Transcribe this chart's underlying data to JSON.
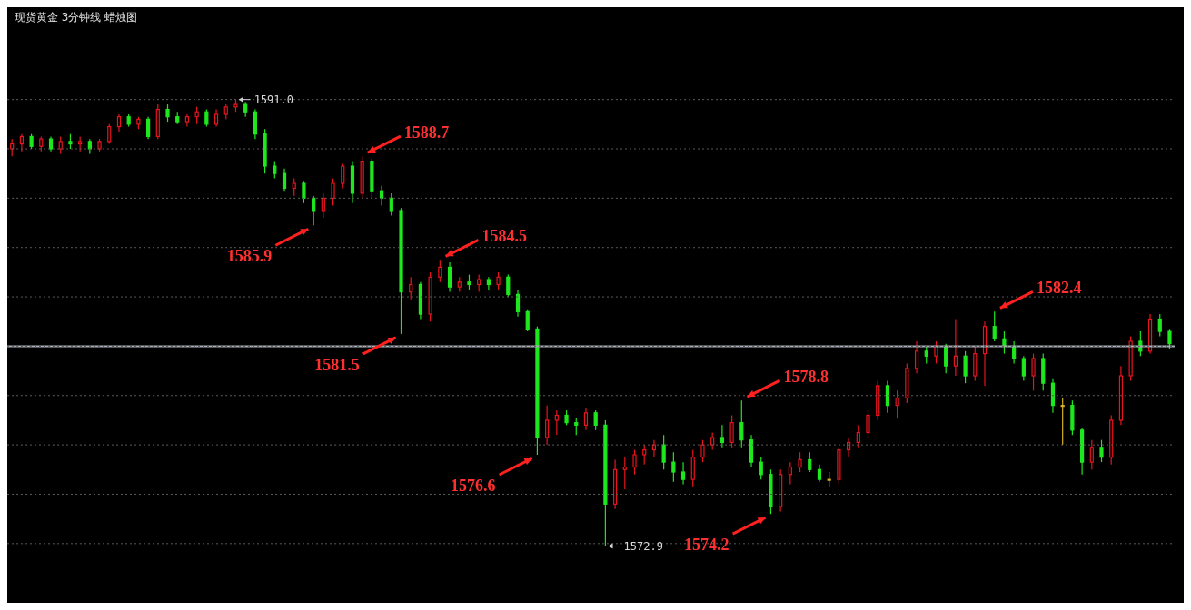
{
  "chart_data": {
    "type": "candlestick",
    "title": "现货黄金 3分钟线 蜡烛图",
    "categories": [
      null,
      null,
      null,
      null,
      null,
      null,
      null,
      null,
      null,
      null,
      null,
      null,
      null,
      null,
      null,
      null,
      null,
      null,
      null,
      null,
      null,
      null,
      null,
      null,
      null,
      null,
      null,
      null,
      null,
      null,
      null,
      null,
      null,
      null,
      null,
      null,
      null,
      null,
      null,
      null,
      null,
      null,
      null,
      null,
      null,
      null,
      null,
      null,
      null,
      null,
      null,
      null,
      null,
      null,
      null,
      null,
      null,
      null,
      null,
      null,
      null,
      null,
      null,
      null,
      null,
      null,
      null,
      null,
      null,
      null,
      null,
      null,
      null,
      null,
      null,
      null,
      null,
      null,
      null,
      null,
      null,
      null,
      null,
      null,
      null,
      null,
      null,
      null,
      null,
      null,
      null,
      null,
      null,
      null,
      null,
      null,
      null,
      null,
      null,
      null,
      null,
      null,
      null,
      null,
      null,
      null,
      null,
      null,
      null,
      null,
      null,
      null,
      null,
      null,
      null,
      null,
      null,
      null,
      null,
      null
    ],
    "ohlc": [
      [
        1589.0,
        1589.4,
        1588.7,
        1589.2
      ],
      [
        1589.2,
        1589.6,
        1588.9,
        1589.5
      ],
      [
        1589.5,
        1589.6,
        1589.0,
        1589.1
      ],
      [
        1589.1,
        1589.5,
        1588.9,
        1589.4
      ],
      [
        1589.4,
        1589.5,
        1588.9,
        1589.0
      ],
      [
        1589.0,
        1589.5,
        1588.8,
        1589.3
      ],
      [
        1589.3,
        1589.6,
        1589.0,
        1589.2
      ],
      [
        1589.2,
        1589.5,
        1588.9,
        1589.3
      ],
      [
        1589.3,
        1589.4,
        1588.8,
        1589.0
      ],
      [
        1589.0,
        1589.4,
        1588.9,
        1589.3
      ],
      [
        1589.3,
        1590.0,
        1589.2,
        1589.9
      ],
      [
        1589.9,
        1590.4,
        1589.7,
        1590.3
      ],
      [
        1590.3,
        1590.4,
        1589.9,
        1590.0
      ],
      [
        1590.0,
        1590.3,
        1589.8,
        1590.2
      ],
      [
        1590.2,
        1590.3,
        1589.4,
        1589.5
      ],
      [
        1589.5,
        1590.8,
        1589.4,
        1590.6
      ],
      [
        1590.6,
        1590.8,
        1590.1,
        1590.3
      ],
      [
        1590.3,
        1590.5,
        1590.0,
        1590.1
      ],
      [
        1590.1,
        1590.4,
        1589.9,
        1590.3
      ],
      [
        1590.3,
        1590.7,
        1590.0,
        1590.5
      ],
      [
        1590.5,
        1590.6,
        1589.9,
        1590.0
      ],
      [
        1590.0,
        1590.6,
        1589.9,
        1590.4
      ],
      [
        1590.4,
        1590.8,
        1590.2,
        1590.7
      ],
      [
        1590.7,
        1591.0,
        1590.5,
        1590.8
      ],
      [
        1590.8,
        1590.9,
        1590.3,
        1590.5
      ],
      [
        1590.5,
        1590.6,
        1589.4,
        1589.6
      ],
      [
        1589.6,
        1589.8,
        1588.0,
        1588.3
      ],
      [
        1588.3,
        1588.5,
        1587.8,
        1588.0
      ],
      [
        1588.0,
        1588.2,
        1587.3,
        1587.4
      ],
      [
        1587.4,
        1587.8,
        1587.1,
        1587.6
      ],
      [
        1587.6,
        1587.7,
        1586.8,
        1587.0
      ],
      [
        1587.0,
        1587.1,
        1585.9,
        1586.5
      ],
      [
        1586.5,
        1587.2,
        1586.2,
        1587.0
      ],
      [
        1587.0,
        1587.8,
        1586.7,
        1587.6
      ],
      [
        1587.6,
        1588.4,
        1587.4,
        1588.3
      ],
      [
        1588.3,
        1588.5,
        1586.8,
        1587.2
      ],
      [
        1587.2,
        1588.7,
        1587.0,
        1588.5
      ],
      [
        1588.5,
        1588.6,
        1587.0,
        1587.3
      ],
      [
        1587.3,
        1587.5,
        1586.7,
        1587.0
      ],
      [
        1587.0,
        1587.2,
        1586.3,
        1586.5
      ],
      [
        1586.5,
        1586.6,
        1581.5,
        1583.2
      ],
      [
        1583.2,
        1583.8,
        1582.9,
        1583.5
      ],
      [
        1583.5,
        1583.6,
        1582.1,
        1582.3
      ],
      [
        1582.3,
        1584.0,
        1582.0,
        1583.8
      ],
      [
        1583.8,
        1584.5,
        1583.6,
        1584.2
      ],
      [
        1584.2,
        1584.4,
        1583.2,
        1583.4
      ],
      [
        1583.4,
        1583.8,
        1583.2,
        1583.6
      ],
      [
        1583.6,
        1583.9,
        1583.3,
        1583.5
      ],
      [
        1583.5,
        1583.9,
        1583.2,
        1583.7
      ],
      [
        1583.7,
        1583.8,
        1583.3,
        1583.5
      ],
      [
        1583.5,
        1584.0,
        1583.3,
        1583.8
      ],
      [
        1583.8,
        1583.9,
        1583.0,
        1583.1
      ],
      [
        1583.1,
        1583.3,
        1582.2,
        1582.4
      ],
      [
        1582.4,
        1582.5,
        1581.6,
        1581.7
      ],
      [
        1581.7,
        1581.8,
        1576.6,
        1577.3
      ],
      [
        1577.3,
        1578.6,
        1577.0,
        1578.0
      ],
      [
        1578.0,
        1578.4,
        1577.4,
        1578.2
      ],
      [
        1578.2,
        1578.4,
        1577.8,
        1577.9
      ],
      [
        1577.9,
        1578.1,
        1577.4,
        1577.8
      ],
      [
        1577.8,
        1578.5,
        1577.6,
        1578.3
      ],
      [
        1578.3,
        1578.4,
        1577.6,
        1577.8
      ],
      [
        1577.8,
        1578.0,
        1572.9,
        1574.6
      ],
      [
        1574.6,
        1576.4,
        1574.4,
        1576.0
      ],
      [
        1576.0,
        1576.5,
        1575.2,
        1576.1
      ],
      [
        1576.1,
        1576.8,
        1575.8,
        1576.6
      ],
      [
        1576.6,
        1577.0,
        1576.2,
        1576.8
      ],
      [
        1576.8,
        1577.2,
        1576.5,
        1577.0
      ],
      [
        1577.0,
        1577.4,
        1576.0,
        1576.3
      ],
      [
        1576.3,
        1576.7,
        1575.5,
        1575.9
      ],
      [
        1575.9,
        1576.3,
        1575.4,
        1575.6
      ],
      [
        1575.6,
        1576.8,
        1575.3,
        1576.5
      ],
      [
        1576.5,
        1577.2,
        1576.3,
        1577.0
      ],
      [
        1577.0,
        1577.5,
        1576.8,
        1577.3
      ],
      [
        1577.3,
        1577.8,
        1576.9,
        1577.1
      ],
      [
        1577.1,
        1578.2,
        1576.9,
        1577.9
      ],
      [
        1577.9,
        1578.8,
        1576.9,
        1577.2
      ],
      [
        1577.2,
        1577.4,
        1576.1,
        1576.3
      ],
      [
        1576.3,
        1576.5,
        1575.6,
        1575.8
      ],
      [
        1575.8,
        1576.0,
        1574.2,
        1574.5
      ],
      [
        1574.5,
        1576.0,
        1574.3,
        1575.8
      ],
      [
        1575.8,
        1576.3,
        1575.4,
        1576.1
      ],
      [
        1576.1,
        1576.7,
        1575.9,
        1576.4
      ],
      [
        1576.4,
        1576.7,
        1575.9,
        1576.0
      ],
      [
        1576.0,
        1576.2,
        1575.5,
        1575.6
      ],
      [
        1575.6,
        1575.9,
        1575.3,
        1575.6
      ],
      [
        1575.6,
        1576.9,
        1575.4,
        1576.8
      ],
      [
        1576.8,
        1577.3,
        1576.5,
        1577.1
      ],
      [
        1577.1,
        1577.8,
        1576.9,
        1577.5
      ],
      [
        1577.5,
        1578.4,
        1577.3,
        1578.2
      ],
      [
        1578.2,
        1579.6,
        1578.0,
        1579.4
      ],
      [
        1579.4,
        1579.6,
        1578.3,
        1578.6
      ],
      [
        1578.6,
        1579.2,
        1578.1,
        1578.9
      ],
      [
        1578.9,
        1580.3,
        1578.7,
        1580.1
      ],
      [
        1580.1,
        1581.2,
        1579.9,
        1580.8
      ],
      [
        1580.8,
        1581.0,
        1580.3,
        1580.6
      ],
      [
        1580.6,
        1581.2,
        1580.3,
        1581.0
      ],
      [
        1581.0,
        1581.1,
        1579.9,
        1580.2
      ],
      [
        1580.2,
        1582.1,
        1579.8,
        1580.6
      ],
      [
        1580.6,
        1580.8,
        1579.5,
        1579.8
      ],
      [
        1579.8,
        1581.0,
        1579.6,
        1580.7
      ],
      [
        1580.7,
        1582.0,
        1579.4,
        1581.8
      ],
      [
        1581.8,
        1582.4,
        1581.2,
        1581.3
      ],
      [
        1581.3,
        1581.6,
        1580.7,
        1581.0
      ],
      [
        1581.0,
        1581.2,
        1580.3,
        1580.5
      ],
      [
        1580.5,
        1580.6,
        1579.6,
        1579.8
      ],
      [
        1579.8,
        1580.7,
        1579.2,
        1580.5
      ],
      [
        1580.5,
        1580.7,
        1579.2,
        1579.5
      ],
      [
        1579.5,
        1579.7,
        1578.3,
        1578.6
      ],
      [
        1578.6,
        1578.9,
        1577.0,
        1578.6
      ],
      [
        1578.6,
        1578.8,
        1577.4,
        1577.6
      ],
      [
        1577.6,
        1577.7,
        1575.8,
        1576.3
      ],
      [
        1576.3,
        1577.2,
        1576.0,
        1576.9
      ],
      [
        1576.9,
        1577.2,
        1576.3,
        1576.5
      ],
      [
        1576.5,
        1578.2,
        1576.2,
        1578.0
      ],
      [
        1578.0,
        1580.2,
        1577.8,
        1579.8
      ],
      [
        1579.8,
        1581.4,
        1579.6,
        1581.2
      ],
      [
        1581.2,
        1581.6,
        1580.6,
        1580.8
      ],
      [
        1580.8,
        1582.3,
        1580.7,
        1582.1
      ],
      [
        1582.1,
        1582.3,
        1581.4,
        1581.6
      ],
      [
        1581.6,
        1581.7,
        1580.9,
        1581.1
      ]
    ],
    "yticks": [
      {
        "value": 1573,
        "label": null
      },
      {
        "value": 1575,
        "label": null
      },
      {
        "value": 1577,
        "label": null
      },
      {
        "value": 1579,
        "label": null
      },
      {
        "value": 1581,
        "label": null
      },
      {
        "value": 1583,
        "label": null
      },
      {
        "value": 1585,
        "label": null
      },
      {
        "value": 1587,
        "label": null
      },
      {
        "value": 1589,
        "label": null
      },
      {
        "value": 1591,
        "label": null
      }
    ],
    "grid": "y",
    "legend": false,
    "ref_lines": [
      {
        "axis": "y",
        "value": 1581,
        "color": "#a8adb5"
      }
    ],
    "annotations": [
      "1591.0",
      "1588.7",
      "1585.9",
      "1584.5",
      "1581.5",
      "1576.6",
      "1578.8",
      "1574.2",
      "1582.4",
      "1572.9"
    ]
  }
}
